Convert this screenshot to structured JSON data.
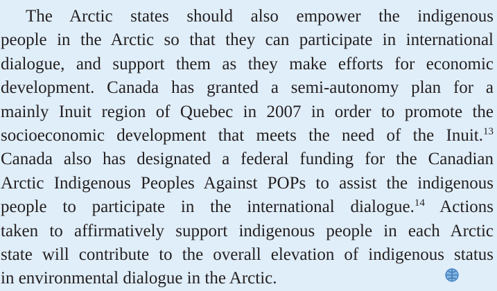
{
  "paragraph": {
    "lines": [
      "The Arctic states should also empower the indigenous",
      "people in the Arctic so that they can participate in international",
      "dialogue, and support them as they make efforts for economic",
      "development. Canada has granted a semi-autonomy plan for a",
      "mainly Inuit region of Quebec in 2007 in order to promote the",
      {
        "text": "socioeconomic development that meets the need of the Inuit.",
        "note": "13"
      },
      "Canada also has designated a federal funding for the Canadian",
      "Arctic Indigenous Peoples Against POPs to assist the indigenous",
      {
        "text": "people to participate in the international dialogue.",
        "note": "14",
        "rest": "Actions"
      },
      "taken to affirmatively support indigenous people in each Arctic",
      "state will contribute to the overall elevation of indigenous status",
      "in environmental dialogue in the Arctic."
    ]
  }
}
